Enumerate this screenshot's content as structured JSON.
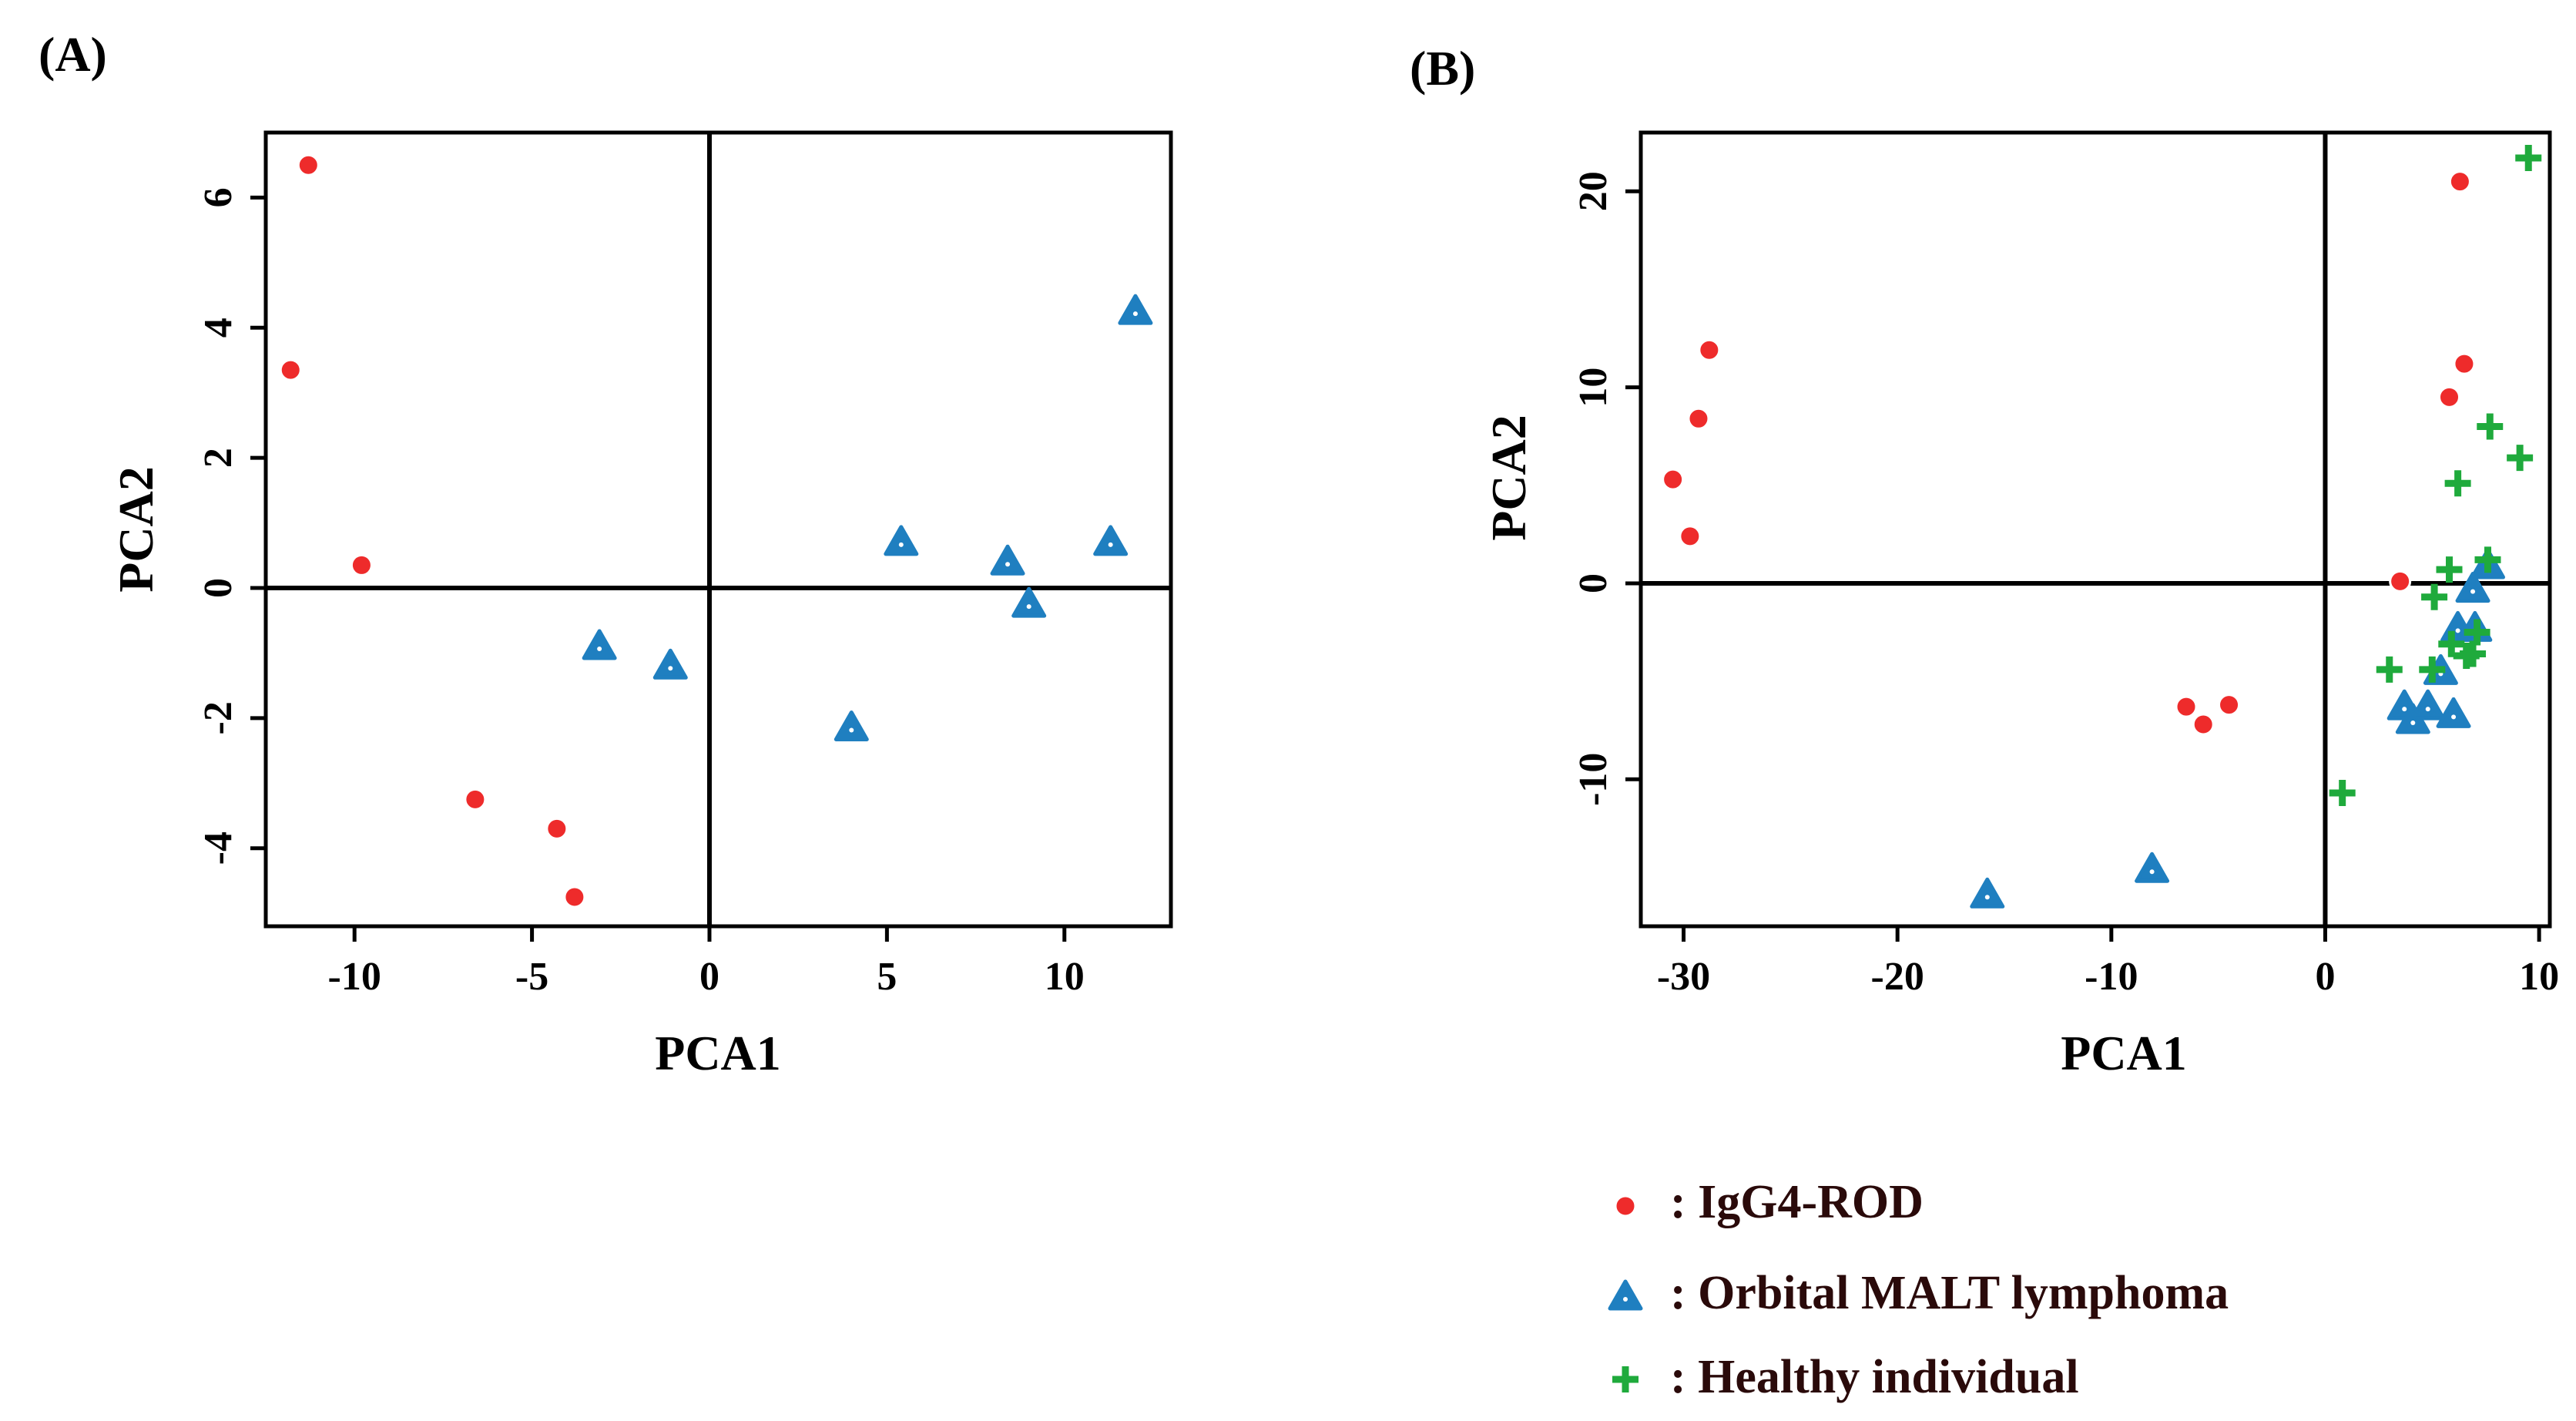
{
  "legend": [
    {
      "key": "igg4",
      "label": ": IgG4-ROD",
      "marker": "circle",
      "color": "#ee2b2b"
    },
    {
      "key": "malt",
      "label": ": Orbital MALT lymphoma",
      "marker": "triangle",
      "color": "#1f7fc0"
    },
    {
      "key": "healthy",
      "label": ": Healthy individual",
      "marker": "plus",
      "color": "#1faa3c"
    }
  ],
  "chart_data": [
    {
      "type": "scatter",
      "panel_label": "(A)",
      "xlabel": "PCA1",
      "ylabel": "PCA2",
      "xlim": [
        -12.5,
        13
      ],
      "ylim": [
        -5.2,
        7
      ],
      "x_ticks": [
        -10,
        -5,
        0,
        5,
        10
      ],
      "x_tick_labels": [
        "-10",
        "-5",
        "0",
        "5",
        "10"
      ],
      "y_ticks": [
        -4,
        -2,
        0,
        2,
        4,
        6
      ],
      "y_tick_labels": [
        "-4",
        "-2",
        "0",
        "2",
        "4",
        "6"
      ],
      "series": [
        {
          "name": "IgG4-ROD",
          "key": "igg4",
          "points": [
            [
              -11.3,
              6.5
            ],
            [
              -11.8,
              3.35
            ],
            [
              -9.8,
              0.35
            ],
            [
              -6.6,
              -3.25
            ],
            [
              -4.3,
              -3.7
            ],
            [
              -3.8,
              -4.75
            ]
          ]
        },
        {
          "name": "Orbital MALT lymphoma",
          "key": "malt",
          "points": [
            [
              -3.1,
              -0.9
            ],
            [
              -1.1,
              -1.2
            ],
            [
              4.0,
              -2.15
            ],
            [
              5.4,
              0.7
            ],
            [
              8.4,
              0.4
            ],
            [
              9.0,
              -0.25
            ],
            [
              11.3,
              0.7
            ],
            [
              12.0,
              4.25
            ]
          ]
        }
      ]
    },
    {
      "type": "scatter",
      "panel_label": "(B)",
      "xlabel": "PCA1",
      "ylabel": "PCA2",
      "xlim": [
        -32,
        10.5
      ],
      "ylim": [
        -17.5,
        23
      ],
      "x_ticks": [
        -30,
        -20,
        -10,
        0,
        10
      ],
      "x_tick_labels": [
        "-30",
        "-20",
        "-10",
        "0",
        "10"
      ],
      "y_ticks": [
        -10,
        0,
        10,
        20
      ],
      "y_tick_labels": [
        "-10",
        "0",
        "10",
        "20"
      ],
      "series": [
        {
          "name": "IgG4-ROD",
          "key": "igg4",
          "points": [
            [
              -28.8,
              11.9
            ],
            [
              -29.3,
              8.4
            ],
            [
              -30.5,
              5.3
            ],
            [
              -29.7,
              2.4
            ],
            [
              -6.5,
              -6.3
            ],
            [
              -5.7,
              -7.2
            ],
            [
              -4.5,
              -6.2
            ],
            [
              3.5,
              0.1
            ],
            [
              5.8,
              9.5
            ],
            [
              6.3,
              20.5
            ],
            [
              6.5,
              11.2
            ]
          ]
        },
        {
          "name": "Orbital MALT lymphoma",
          "key": "malt",
          "points": [
            [
              -15.8,
              -15.9
            ],
            [
              -8.1,
              -14.6
            ],
            [
              3.7,
              -6.3
            ],
            [
              4.1,
              -7.0
            ],
            [
              4.8,
              -6.3
            ],
            [
              5.4,
              -4.5
            ],
            [
              6.0,
              -6.7
            ],
            [
              6.2,
              -2.3
            ],
            [
              6.9,
              -0.3
            ],
            [
              7.0,
              -2.3
            ],
            [
              7.6,
              0.9
            ]
          ]
        },
        {
          "name": "Healthy individual",
          "key": "healthy",
          "points": [
            [
              0.8,
              -10.7
            ],
            [
              3.0,
              -4.4
            ],
            [
              5.0,
              -4.4
            ],
            [
              5.1,
              -0.7
            ],
            [
              5.8,
              0.7
            ],
            [
              5.9,
              -3.1
            ],
            [
              6.2,
              5.1
            ],
            [
              6.6,
              -3.7
            ],
            [
              6.9,
              -3.6
            ],
            [
              7.1,
              -2.5
            ],
            [
              7.6,
              1.2
            ],
            [
              7.7,
              8.0
            ],
            [
              9.1,
              6.4
            ],
            [
              9.5,
              21.7
            ]
          ]
        }
      ]
    }
  ]
}
